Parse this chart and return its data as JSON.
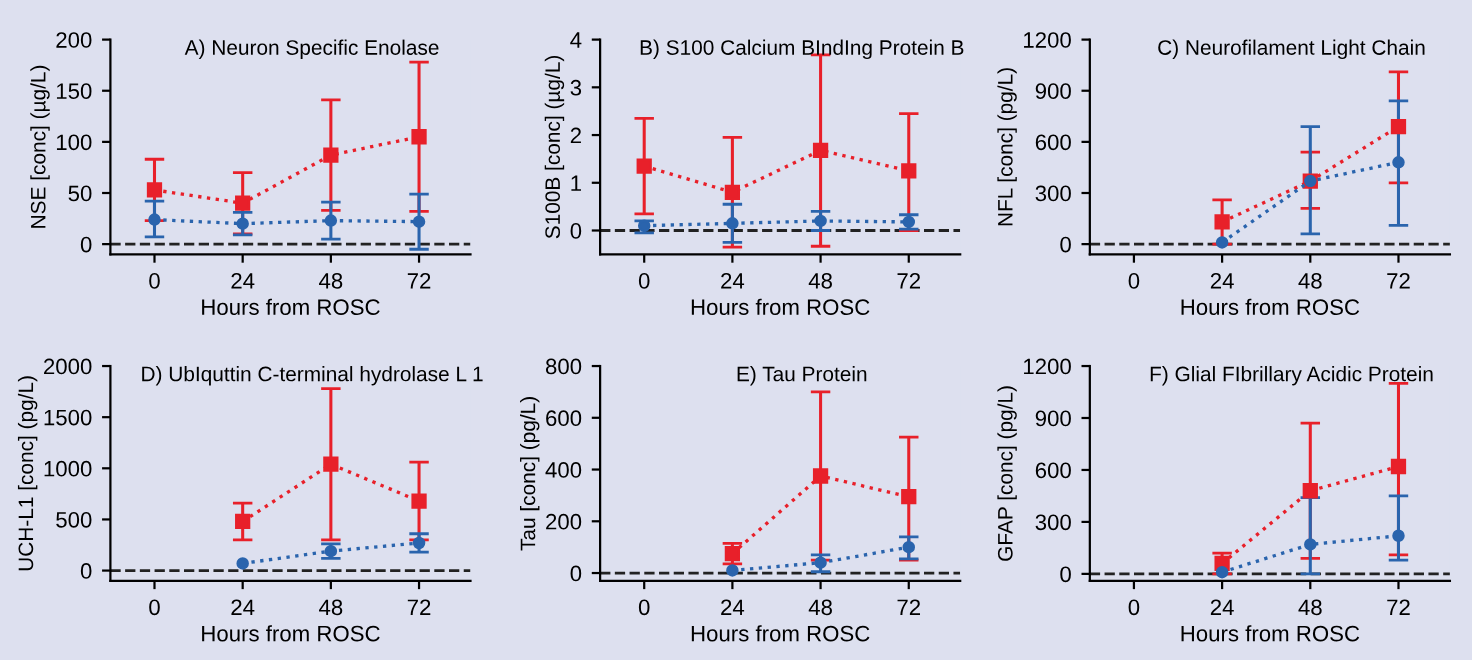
{
  "chart_data": [
    {
      "type": "line",
      "title": "A) Neuron Specific Enolase",
      "xlabel": "Hours from ROSC",
      "ylabel": "NSE [conc] (µg/L)",
      "x": [
        0,
        24,
        48,
        72
      ],
      "xlim": [
        -12,
        86
      ],
      "xticks": [
        0,
        24,
        48,
        72
      ],
      "ylim": [
        -10,
        200
      ],
      "yticks": [
        0,
        50,
        100,
        150,
        200
      ],
      "line_style": "dotted",
      "grid": false,
      "legend": false,
      "ref_lines": [
        {
          "axis": "y",
          "value": 0,
          "color": "#222222",
          "line_style": "dashed"
        }
      ],
      "series": [
        {
          "color": "#e8202a",
          "marker": "square",
          "values": [
            53,
            40,
            87,
            105
          ],
          "errors": [
            [
              23,
              83
            ],
            [
              10,
              70
            ],
            [
              33,
              141
            ],
            [
              32,
              178
            ]
          ]
        },
        {
          "color": "#2a64ad",
          "marker": "circle",
          "values": [
            24,
            20,
            23,
            22
          ],
          "errors": [
            [
              7,
              42
            ],
            [
              9,
              31
            ],
            [
              5,
              41
            ],
            [
              -5,
              49
            ]
          ]
        }
      ]
    },
    {
      "type": "line",
      "title": "B) S100 Calcium BIndIng Protein B",
      "xlabel": "Hours from ROSC",
      "ylabel": "S100B [conc] (µg/L)",
      "x": [
        0,
        24,
        48,
        72
      ],
      "xlim": [
        -12,
        86
      ],
      "xticks": [
        0,
        24,
        48,
        72
      ],
      "ylim": [
        -0.5,
        4
      ],
      "yticks": [
        0,
        1,
        2,
        3,
        4
      ],
      "line_style": "dotted",
      "grid": false,
      "legend": false,
      "ref_lines": [
        {
          "axis": "y",
          "value": 0,
          "color": "#222222",
          "line_style": "dashed"
        }
      ],
      "series": [
        {
          "color": "#e8202a",
          "marker": "square",
          "values": [
            1.35,
            0.8,
            1.68,
            1.25
          ],
          "errors": [
            [
              0.35,
              2.35
            ],
            [
              -0.35,
              1.95
            ],
            [
              -0.33,
              3.68
            ],
            [
              0,
              2.45
            ]
          ]
        },
        {
          "color": "#2a64ad",
          "marker": "circle",
          "values": [
            0.1,
            0.15,
            0.2,
            0.18
          ],
          "errors": [
            [
              -0.05,
              0.2
            ],
            [
              -0.25,
              0.55
            ],
            [
              0,
              0.4
            ],
            [
              0.03,
              0.33
            ]
          ]
        }
      ]
    },
    {
      "type": "line",
      "title": "C) Neurofilament Light Chain",
      "xlabel": "Hours from ROSC",
      "ylabel": "NFL [conc] (pg/L)",
      "xlim": [
        -12,
        86
      ],
      "xticks": [
        0,
        24,
        48,
        72
      ],
      "ylim": [
        -60,
        1200
      ],
      "yticks": [
        0,
        300,
        600,
        900,
        1200
      ],
      "line_style": "dotted",
      "grid": false,
      "legend": false,
      "ref_lines": [
        {
          "axis": "y",
          "value": 0,
          "color": "#222222",
          "line_style": "dashed"
        }
      ],
      "series": [
        {
          "color": "#e8202a",
          "marker": "square",
          "x": [
            24,
            48,
            72
          ],
          "values": [
            130,
            370,
            690
          ],
          "errors": [
            [
              0,
              260
            ],
            [
              210,
              540
            ],
            [
              360,
              1010
            ]
          ]
        },
        {
          "color": "#2a64ad",
          "marker": "circle",
          "x": [
            24,
            48,
            72
          ],
          "values": [
            10,
            370,
            480
          ],
          "errors": [
            null,
            [
              60,
              690
            ],
            [
              110,
              840
            ]
          ]
        }
      ]
    },
    {
      "type": "line",
      "title": "D) UbIquttin C-terminal hydrolase L 1",
      "xlabel": "Hours from ROSC",
      "ylabel": "UCH-L1 [conc] (pg/L)",
      "xlim": [
        -12,
        86
      ],
      "xticks": [
        0,
        24,
        48,
        72
      ],
      "ylim": [
        -100,
        2000
      ],
      "yticks": [
        0,
        500,
        1000,
        1500,
        2000
      ],
      "line_style": "dotted",
      "grid": false,
      "legend": false,
      "ref_lines": [
        {
          "axis": "y",
          "value": 0,
          "color": "#222222",
          "line_style": "dashed"
        }
      ],
      "series": [
        {
          "color": "#e8202a",
          "marker": "square",
          "x": [
            24,
            48,
            72
          ],
          "values": [
            480,
            1040,
            680
          ],
          "errors": [
            [
              300,
              660
            ],
            [
              300,
              1780
            ],
            [
              300,
              1060
            ]
          ]
        },
        {
          "color": "#2a64ad",
          "marker": "circle",
          "x": [
            24,
            48,
            72
          ],
          "values": [
            70,
            190,
            270
          ],
          "errors": [
            null,
            [
              120,
              260
            ],
            [
              180,
              360
            ]
          ]
        }
      ]
    },
    {
      "type": "line",
      "title": "E) Tau Protein",
      "xlabel": "Hours from ROSC",
      "ylabel": "Tau [conc] (pg/L)",
      "xlim": [
        -12,
        86
      ],
      "xticks": [
        0,
        24,
        48,
        72
      ],
      "ylim": [
        -30,
        800
      ],
      "yticks": [
        0,
        200,
        400,
        600,
        800
      ],
      "line_style": "dotted",
      "grid": false,
      "legend": false,
      "ref_lines": [
        {
          "axis": "y",
          "value": 0,
          "color": "#222222",
          "line_style": "dashed"
        }
      ],
      "series": [
        {
          "color": "#e8202a",
          "marker": "square",
          "x": [
            24,
            48,
            72
          ],
          "values": [
            75,
            375,
            295
          ],
          "errors": [
            [
              35,
              115
            ],
            [
              50,
              700
            ],
            [
              50,
              525
            ]
          ]
        },
        {
          "color": "#2a64ad",
          "marker": "circle",
          "x": [
            24,
            48,
            72
          ],
          "values": [
            10,
            40,
            100
          ],
          "errors": [
            null,
            [
              5,
              70
            ],
            [
              55,
              140
            ]
          ]
        }
      ]
    },
    {
      "type": "line",
      "title": "F) Glial FIbrillary Acidic Protein",
      "xlabel": "Hours from ROSC",
      "ylabel": "GFAP [conc] (pg/L)",
      "xlim": [
        -12,
        86
      ],
      "xticks": [
        0,
        24,
        48,
        72
      ],
      "ylim": [
        -40,
        1200
      ],
      "yticks": [
        0,
        300,
        600,
        900,
        1200
      ],
      "line_style": "dotted",
      "grid": false,
      "legend": false,
      "ref_lines": [
        {
          "axis": "y",
          "value": 0,
          "color": "#222222",
          "line_style": "dashed"
        }
      ],
      "series": [
        {
          "color": "#e8202a",
          "marker": "square",
          "x": [
            24,
            48,
            72
          ],
          "values": [
            60,
            480,
            620
          ],
          "errors": [
            [
              0,
              120
            ],
            [
              90,
              870
            ],
            [
              110,
              1100
            ]
          ]
        },
        {
          "color": "#2a64ad",
          "marker": "circle",
          "x": [
            24,
            48,
            72
          ],
          "values": [
            10,
            170,
            220
          ],
          "errors": [
            null,
            [
              0,
              440
            ],
            [
              80,
              450
            ]
          ]
        }
      ]
    }
  ]
}
